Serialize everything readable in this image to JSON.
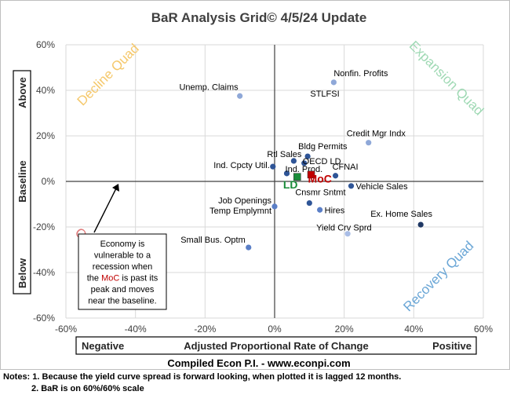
{
  "chart_data": {
    "type": "scatter",
    "title": "BaR Analysis Grid© 4/5/24 Update",
    "xlabel": "Adjusted Proportional Rate of Change",
    "x_label_left": "Negative",
    "x_label_right": "Positive",
    "y_label_top": "Above",
    "y_label_middle": "Baseline",
    "y_label_bottom": "Below",
    "xlim": [
      -60,
      60
    ],
    "ylim": [
      -60,
      60
    ],
    "x_ticks": [
      "-60%",
      "-40%",
      "-20%",
      "0%",
      "20%",
      "40%",
      "60%"
    ],
    "y_ticks": [
      "60%",
      "40%",
      "20%",
      "0%",
      "-20%",
      "-40%",
      "-60%"
    ],
    "grid": true,
    "quadrants": {
      "decline": {
        "label": "Decline Quad",
        "color": "#f5c86b"
      },
      "expansion": {
        "label": "Expansion Quad",
        "color": "#9fd9b4"
      },
      "contraction": {
        "label": "Contraction Quad",
        "color": "#e07b7b"
      },
      "recovery": {
        "label": "Recovery Quad",
        "color": "#6aa6d6"
      }
    },
    "points": [
      {
        "label": "Nonfin. Profits",
        "x": 17,
        "y": 43.5,
        "color": "#8fa8d8"
      },
      {
        "label": "Unemp. Claims",
        "x": -10,
        "y": 37.5,
        "color": "#8fa8d8"
      },
      {
        "label": "Credit Mgr Indx",
        "x": 27,
        "y": 17,
        "color": "#8fa8d8"
      },
      {
        "label": "Bldg Permits",
        "x": 9.5,
        "y": 11,
        "color": "#2f5597"
      },
      {
        "label": "Rtl Sales",
        "x": 5.5,
        "y": 9,
        "color": "#2f5597"
      },
      {
        "label": "OECD LD",
        "x": 8.5,
        "y": 8,
        "color": "#2f5597"
      },
      {
        "label": "Ind. Cpcty Util.",
        "x": -0.5,
        "y": 6.5,
        "color": "#2f5597"
      },
      {
        "label": "Ind. Prod.",
        "x": 3.5,
        "y": 3.5,
        "color": "#2f5597"
      },
      {
        "label": "CFNAI",
        "x": 17.5,
        "y": 2.5,
        "color": "#2f5597"
      },
      {
        "label": "Vehicle Sales",
        "x": 22,
        "y": -2,
        "color": "#2f5597"
      },
      {
        "label": "Cnsmr Sntmt",
        "x": 10,
        "y": -9.5,
        "color": "#2f5597"
      },
      {
        "label": "Job Openings",
        "x": 0,
        "y": -11,
        "color": "#5b7fc7"
      },
      {
        "label": "Hires",
        "x": 13,
        "y": -12.5,
        "color": "#5b7fc7"
      },
      {
        "label": "Ex. Home Sales",
        "x": 42,
        "y": -19,
        "color": "#1f3864"
      },
      {
        "label": "Yield Crv Sprd",
        "x": 21,
        "y": -23,
        "color": "#a9bde6"
      },
      {
        "label": "Small Bus. Optm",
        "x": -7.5,
        "y": -29,
        "color": "#5b7fc7"
      }
    ],
    "markers": [
      {
        "label": "LD",
        "x": 6.5,
        "y": 2,
        "color": "#1a8c3a",
        "text_color": "#1a8c3a"
      },
      {
        "label": "MoC",
        "x": 10.5,
        "y": 3,
        "color": "#c00000",
        "text_color": "#c00000"
      }
    ],
    "annotation": {
      "lines": [
        "Economy is",
        "vulnerable to a",
        "recession when",
        "the MoC is past its",
        "peak and moves",
        "near the baseline."
      ]
    }
  },
  "footer": {
    "source": "Compiled Econ P.I. - www.econpi.com",
    "note1": "Notes: 1. Because the yield curve spread is forward looking, when plotted it is lagged 12 months.",
    "note2": "2. BaR is on 60%/60% scale"
  }
}
